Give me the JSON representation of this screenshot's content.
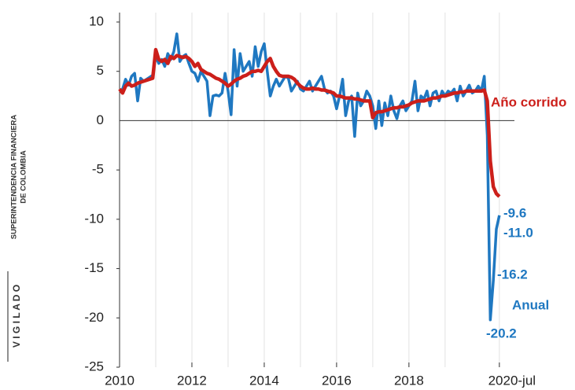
{
  "chart_data": {
    "type": "line",
    "x": [
      "2010-01",
      "2010-02",
      "2010-03",
      "2010-04",
      "2010-05",
      "2010-06",
      "2010-07",
      "2010-08",
      "2010-09",
      "2010-10",
      "2010-11",
      "2010-12",
      "2011-01",
      "2011-02",
      "2011-03",
      "2011-04",
      "2011-05",
      "2011-06",
      "2011-07",
      "2011-08",
      "2011-09",
      "2011-10",
      "2011-11",
      "2011-12",
      "2012-01",
      "2012-02",
      "2012-03",
      "2012-04",
      "2012-05",
      "2012-06",
      "2012-07",
      "2012-08",
      "2012-09",
      "2012-10",
      "2012-11",
      "2012-12",
      "2013-01",
      "2013-02",
      "2013-03",
      "2013-04",
      "2013-05",
      "2013-06",
      "2013-07",
      "2013-08",
      "2013-09",
      "2013-10",
      "2013-11",
      "2013-12",
      "2014-01",
      "2014-02",
      "2014-03",
      "2014-04",
      "2014-05",
      "2014-06",
      "2014-07",
      "2014-08",
      "2014-09",
      "2014-10",
      "2014-11",
      "2014-12",
      "2015-01",
      "2015-02",
      "2015-03",
      "2015-04",
      "2015-05",
      "2015-06",
      "2015-07",
      "2015-08",
      "2015-09",
      "2015-10",
      "2015-11",
      "2015-12",
      "2016-01",
      "2016-02",
      "2016-03",
      "2016-04",
      "2016-05",
      "2016-06",
      "2016-07",
      "2016-08",
      "2016-09",
      "2016-10",
      "2016-11",
      "2016-12",
      "2017-01",
      "2017-02",
      "2017-03",
      "2017-04",
      "2017-05",
      "2017-06",
      "2017-07",
      "2017-08",
      "2017-09",
      "2017-10",
      "2017-11",
      "2017-12",
      "2018-01",
      "2018-02",
      "2018-03",
      "2018-04",
      "2018-05",
      "2018-06",
      "2018-07",
      "2018-08",
      "2018-09",
      "2018-10",
      "2018-11",
      "2018-12",
      "2019-01",
      "2019-02",
      "2019-03",
      "2019-04",
      "2019-05",
      "2019-06",
      "2019-07",
      "2019-08",
      "2019-09",
      "2019-10",
      "2019-11",
      "2019-12",
      "2020-01",
      "2020-02",
      "2020-03",
      "2020-04",
      "2020-05",
      "2020-06",
      "2020-07"
    ],
    "series": [
      {
        "name": "Anual",
        "color": "#1f78c1",
        "values": [
          3.0,
          3.2,
          4.2,
          3.6,
          4.5,
          4.8,
          2.0,
          4.3,
          4.0,
          4.2,
          4.4,
          4.6,
          6.5,
          5.8,
          6.2,
          5.5,
          6.8,
          6.2,
          7.0,
          8.8,
          6.0,
          6.5,
          6.7,
          5.8,
          5.0,
          4.8,
          4.0,
          5.0,
          4.5,
          4.0,
          0.5,
          2.5,
          2.6,
          2.5,
          2.8,
          4.8,
          3.0,
          0.6,
          7.2,
          3.5,
          6.8,
          5.0,
          5.5,
          6.0,
          4.5,
          7.5,
          5.5,
          7.0,
          7.8,
          5.0,
          2.5,
          3.5,
          4.2,
          3.5,
          4.0,
          4.5,
          4.3,
          3.0,
          3.5,
          4.0,
          3.2,
          3.0,
          3.5,
          4.0,
          3.0,
          3.5,
          4.0,
          4.5,
          3.2,
          2.8,
          3.0,
          2.5,
          1.2,
          2.5,
          4.2,
          0.5,
          2.0,
          2.5,
          -1.6,
          2.8,
          1.5,
          2.0,
          3.0,
          2.5,
          1.5,
          -0.8,
          2.0,
          -0.5,
          1.8,
          0.5,
          2.5,
          1.0,
          0.2,
          1.5,
          2.0,
          1.0,
          1.5,
          2.0,
          4.0,
          1.0,
          2.5,
          2.2,
          3.0,
          1.5,
          2.8,
          3.0,
          2.0,
          3.0,
          2.5,
          3.0,
          2.8,
          3.2,
          2.0,
          3.5,
          2.5,
          3.0,
          3.6,
          2.8,
          3.0,
          3.5,
          3.0,
          4.5,
          -1.5,
          -20.2,
          -16.2,
          -11.0,
          -9.6
        ],
        "value_labels": [
          null,
          null,
          null,
          null,
          null,
          null,
          null,
          null,
          null,
          null,
          null,
          null,
          null,
          null,
          null,
          null,
          null,
          null,
          null,
          null,
          null,
          null,
          null,
          null,
          null,
          null,
          null,
          null,
          null,
          null,
          null,
          null,
          null,
          null,
          null,
          null,
          null,
          null,
          null,
          null,
          null,
          null,
          null,
          null,
          null,
          null,
          null,
          null,
          null,
          null,
          null,
          null,
          null,
          null,
          null,
          null,
          null,
          null,
          null,
          null,
          null,
          null,
          null,
          null,
          null,
          null,
          null,
          null,
          null,
          null,
          null,
          null,
          null,
          null,
          null,
          null,
          null,
          null,
          null,
          null,
          null,
          null,
          null,
          null,
          null,
          null,
          null,
          null,
          null,
          null,
          null,
          null,
          null,
          null,
          null,
          null,
          null,
          null,
          null,
          null,
          null,
          null,
          null,
          null,
          null,
          null,
          null,
          null,
          null,
          null,
          null,
          null,
          null,
          null,
          null,
          null,
          null,
          null,
          null,
          null,
          null,
          null,
          null,
          "-20.2",
          "-16.2",
          "-11.0",
          "-9.6"
        ]
      },
      {
        "name": "Año corrido",
        "color": "#cc1f1a",
        "values": [
          3.2,
          2.8,
          3.5,
          3.8,
          3.5,
          3.6,
          3.8,
          3.9,
          4.0,
          4.1,
          4.2,
          4.3,
          7.2,
          6.2,
          6.0,
          6.2,
          5.8,
          6.5,
          6.3,
          6.6,
          6.5,
          6.4,
          6.5,
          6.3,
          6.0,
          5.5,
          5.8,
          5.2,
          5.0,
          4.8,
          4.7,
          4.5,
          4.3,
          4.2,
          4.0,
          3.8,
          3.5,
          3.7,
          4.0,
          4.2,
          4.3,
          4.5,
          4.6,
          4.8,
          5.0,
          5.0,
          5.1,
          5.0,
          5.5,
          6.0,
          6.3,
          5.5,
          5.0,
          4.6,
          4.5,
          4.5,
          4.5,
          4.4,
          4.2,
          3.8,
          3.5,
          3.3,
          3.2,
          3.2,
          3.3,
          3.2,
          3.2,
          3.1,
          3.1,
          3.0,
          2.9,
          2.8,
          2.5,
          2.5,
          2.4,
          2.3,
          2.3,
          2.3,
          2.2,
          2.2,
          2.1,
          2.0,
          2.0,
          2.0,
          0.3,
          0.8,
          0.9,
          0.9,
          1.0,
          1.1,
          1.2,
          1.3,
          1.3,
          1.4,
          1.4,
          1.5,
          1.6,
          1.8,
          1.9,
          2.0,
          2.0,
          2.0,
          2.1,
          2.2,
          2.3,
          2.3,
          2.4,
          2.5,
          2.5,
          2.6,
          2.7,
          2.8,
          2.8,
          2.9,
          2.9,
          3.0,
          3.0,
          3.0,
          3.0,
          3.0,
          3.0,
          3.1,
          2.0,
          -4.1,
          -6.7,
          -7.4,
          -7.7
        ]
      }
    ],
    "xlim": [
      "2010-01",
      "2020-12"
    ],
    "xticks": [
      {
        "value": "2010-01",
        "label": "2010"
      },
      {
        "value": "2012-01",
        "label": "2012"
      },
      {
        "value": "2014-01",
        "label": "2014"
      },
      {
        "value": "2016-01",
        "label": "2016"
      },
      {
        "value": "2018-01",
        "label": "2018"
      },
      {
        "value": "2020-07",
        "label": "2020-jul"
      }
    ],
    "x_minor_grid": [
      "2011-01",
      "2013-01",
      "2015-01",
      "2017-01",
      "2019-01"
    ],
    "ylim": [
      -25,
      10
    ],
    "yticks": [
      -25,
      -20,
      -15,
      -10,
      -5,
      0,
      5,
      10
    ],
    "grid": true,
    "watermark": [
      "SUPERINTENDENCIA FINANCIERA",
      "DE COLOMBIA",
      "V I G I L A D O"
    ]
  }
}
